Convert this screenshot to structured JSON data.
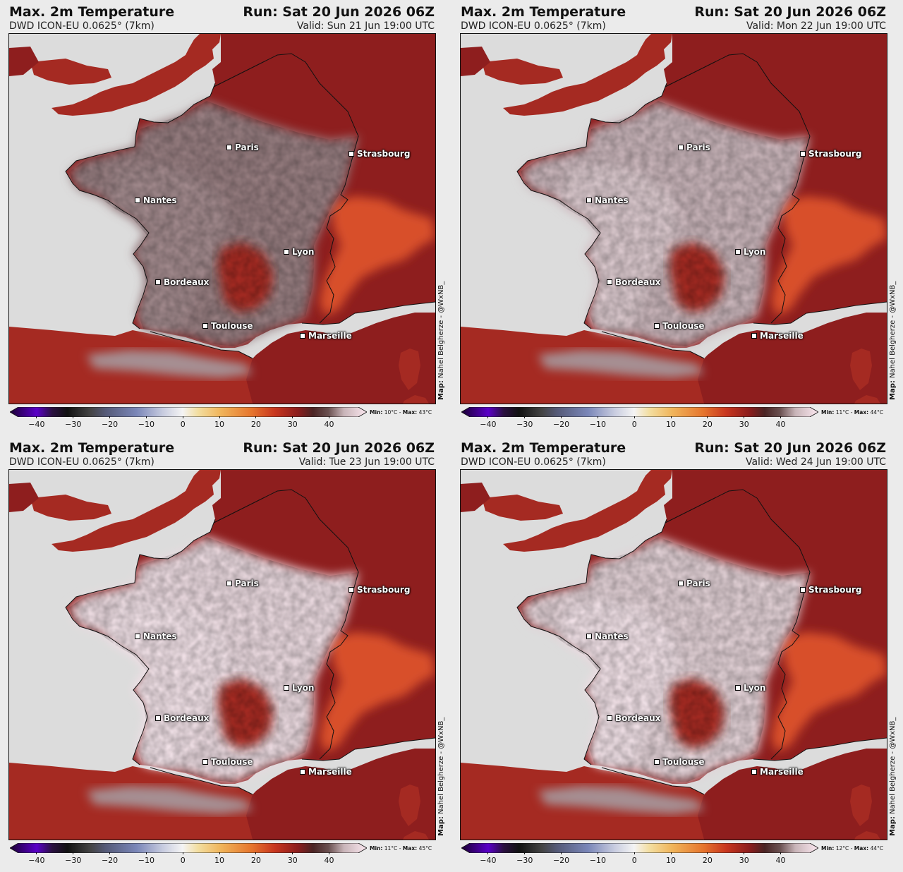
{
  "panels": [
    {
      "title": "Max. 2m Temperature",
      "run": "Run: Sat 20 Jun 2026 06Z",
      "model": "DWD ICON-EU 0.0625° (7km)",
      "valid": "Valid:  Sun 21 Jun 19:00 UTC",
      "credit_label": "Map:",
      "credit_text": "Nahel Belgherze - @WxNB_",
      "minmax_min_label": "Min:",
      "minmax_min": "10°C",
      "minmax_sep": "-",
      "minmax_max_label": "Max:",
      "minmax_max": "43°C",
      "heat_level": 0.45
    },
    {
      "title": "Max. 2m Temperature",
      "run": "Run: Sat 20 Jun 2026 06Z",
      "model": "DWD ICON-EU 0.0625° (7km)",
      "valid": "Valid:  Mon 22 Jun 19:00 UTC",
      "credit_label": "Map:",
      "credit_text": "Nahel Belgherze - @WxNB_",
      "minmax_min_label": "Min:",
      "minmax_min": "11°C",
      "minmax_sep": "-",
      "minmax_max_label": "Max:",
      "minmax_max": "44°C",
      "heat_level": 0.75
    },
    {
      "title": "Max. 2m Temperature",
      "run": "Run: Sat 20 Jun 2026 06Z",
      "model": "DWD ICON-EU 0.0625° (7km)",
      "valid": "Valid:  Tue 23 Jun 19:00 UTC",
      "credit_label": "Map:",
      "credit_text": "Nahel Belgherze - @WxNB_",
      "minmax_min_label": "Min:",
      "minmax_min": "11°C",
      "minmax_sep": "-",
      "minmax_max_label": "Max:",
      "minmax_max": "45°C",
      "heat_level": 0.95
    },
    {
      "title": "Max. 2m Temperature",
      "run": "Run: Sat 20 Jun 2026 06Z",
      "model": "DWD ICON-EU 0.0625° (7km)",
      "valid": "Valid:  Wed 24 Jun 19:00 UTC",
      "credit_label": "Map:",
      "credit_text": "Nahel Belgherze - @WxNB_",
      "minmax_min_label": "Min:",
      "minmax_min": "12°C",
      "minmax_sep": "-",
      "minmax_max_label": "Max:",
      "minmax_max": "44°C",
      "heat_level": 0.9
    }
  ],
  "cities": [
    "Paris",
    "Strasbourg",
    "Nantes",
    "Lyon",
    "Bordeaux",
    "Toulouse",
    "Marseille"
  ],
  "colorbar": {
    "ticks": [
      "−40",
      "−30",
      "−20",
      "−10",
      "0",
      "10",
      "20",
      "30",
      "40"
    ],
    "range": [
      -45,
      48
    ],
    "stops": [
      {
        "t": -45,
        "c": "#1a0033"
      },
      {
        "t": -38,
        "c": "#5a00c8"
      },
      {
        "t": -34,
        "c": "#2a1040"
      },
      {
        "t": -30,
        "c": "#111111"
      },
      {
        "t": -24,
        "c": "#444444"
      },
      {
        "t": -20,
        "c": "#555a78"
      },
      {
        "t": -12,
        "c": "#7a86b8"
      },
      {
        "t": -5,
        "c": "#c9cde0"
      },
      {
        "t": 0,
        "c": "#f4f4f4"
      },
      {
        "t": 4,
        "c": "#f3dea0"
      },
      {
        "t": 10,
        "c": "#f0b45a"
      },
      {
        "t": 18,
        "c": "#e6752d"
      },
      {
        "t": 24,
        "c": "#c8361f"
      },
      {
        "t": 30,
        "c": "#8c1d1d"
      },
      {
        "t": 34,
        "c": "#4a2424"
      },
      {
        "t": 38,
        "c": "#6a5050"
      },
      {
        "t": 42,
        "c": "#c8b4b8"
      },
      {
        "t": 48,
        "c": "#fbe8f0"
      }
    ]
  },
  "colors": {
    "sea": "#dcdcdc",
    "land_hot": "#8e1e1e",
    "land_mid": "#4a2a2a",
    "land_warm": "#a52a22",
    "alps_hot": "#d8502a",
    "extreme": "#f2e2e8",
    "border": "#111111"
  }
}
